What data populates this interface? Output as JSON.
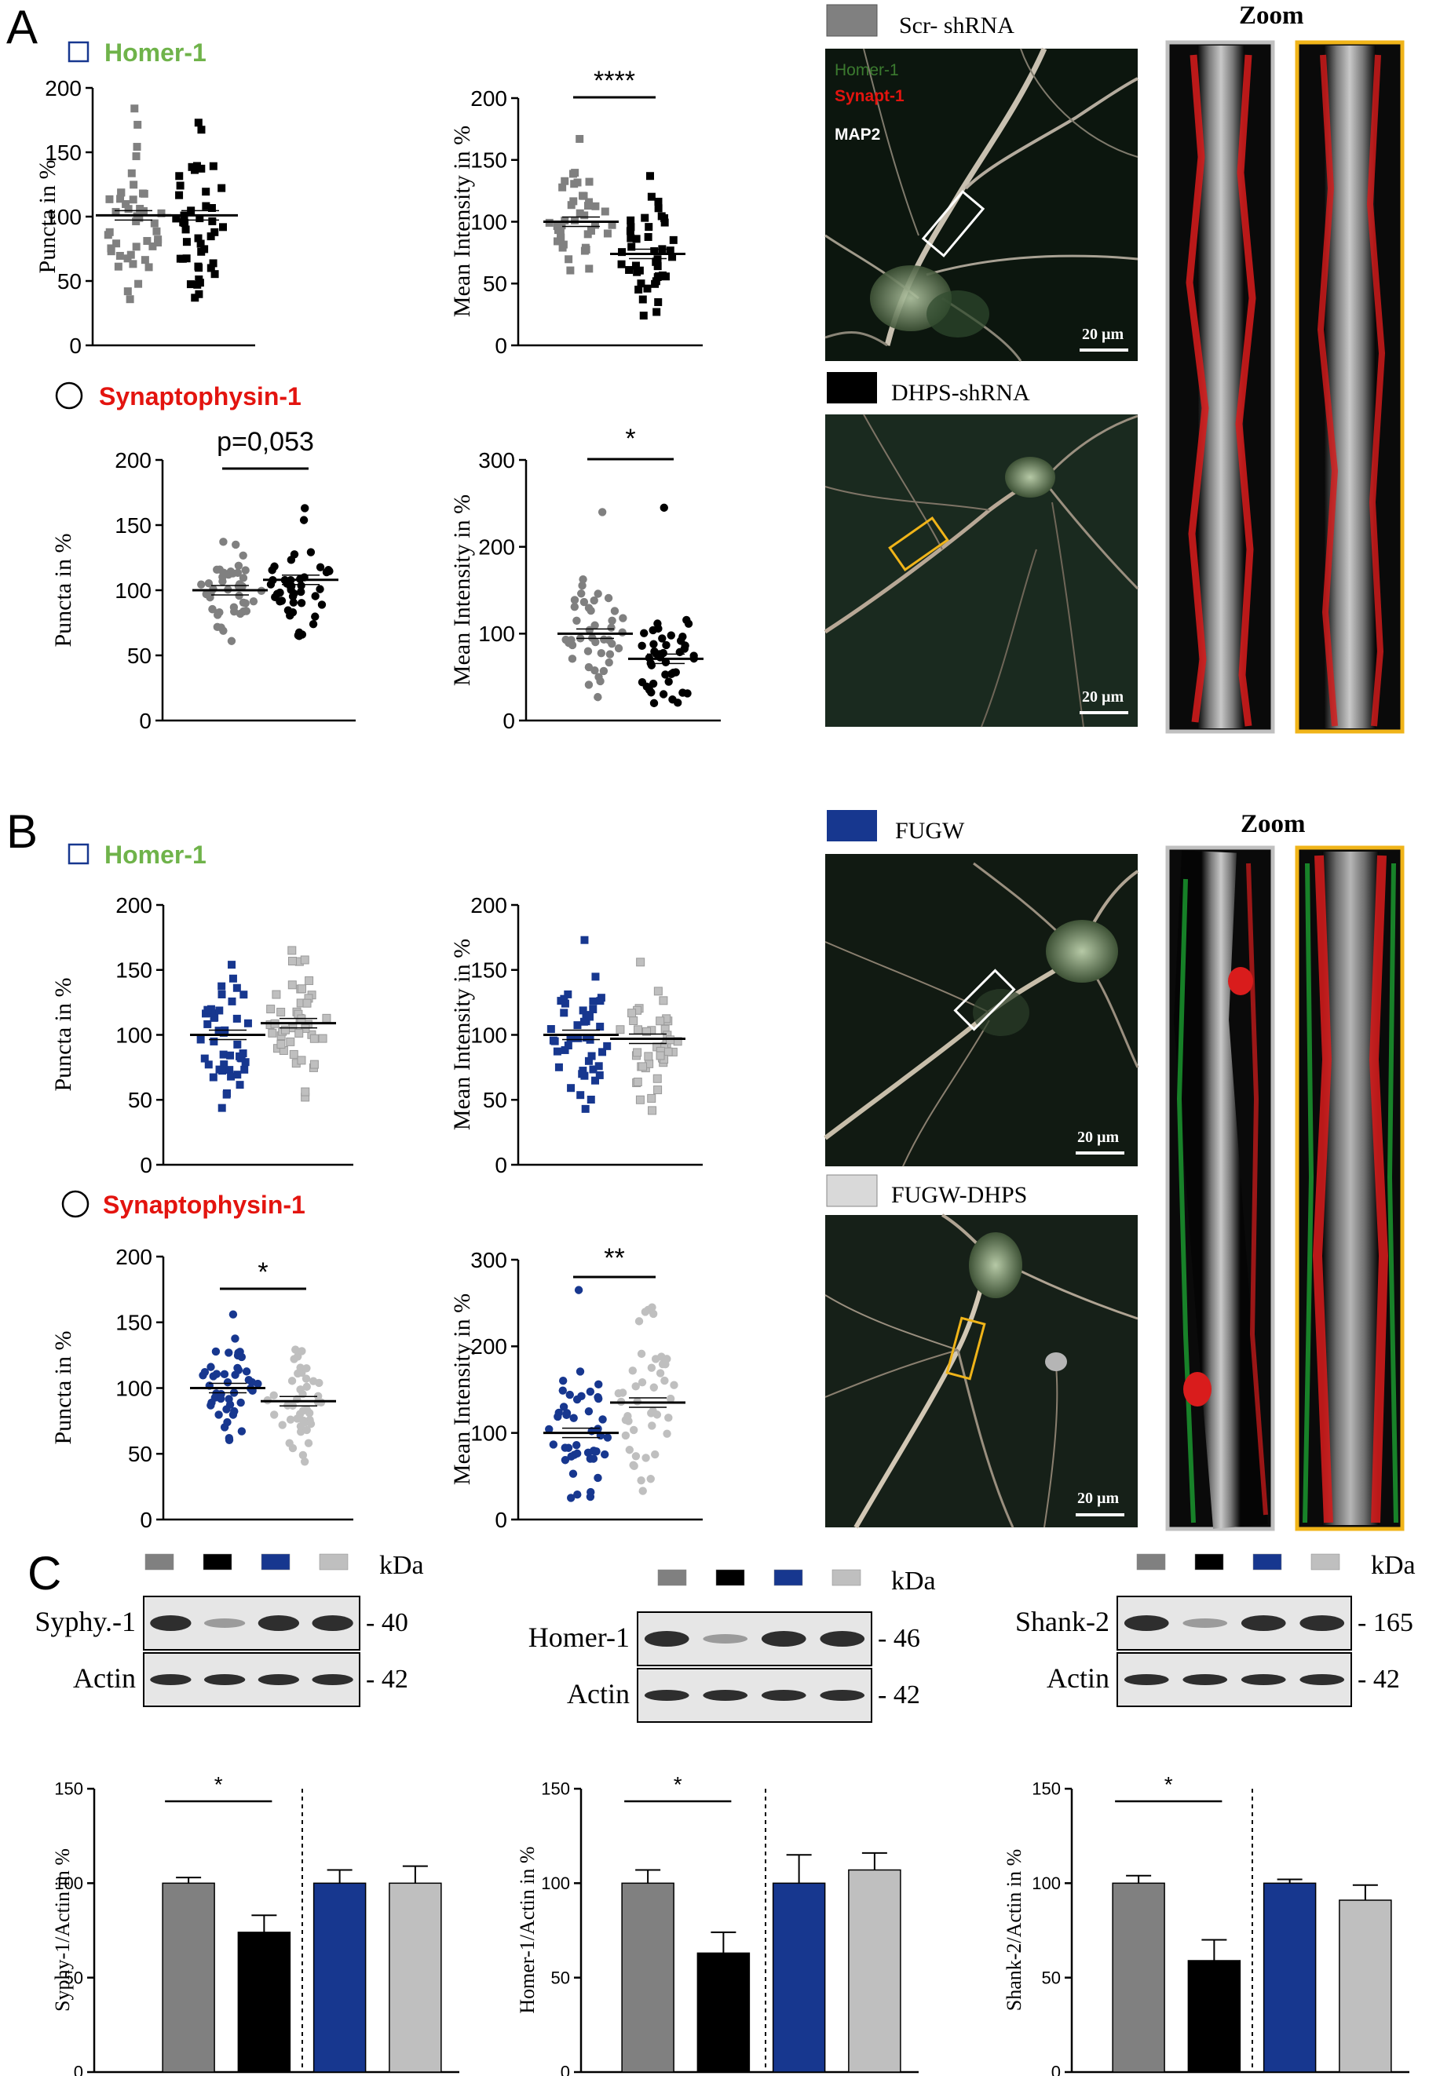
{
  "panels": {
    "A": "A",
    "B": "B",
    "C": "C"
  },
  "legend_ab": {
    "homer": "Homer-1",
    "synapto": "Synaptophysin-1",
    "homer_color": "#6fb34a",
    "synapto_color": "#e3140f"
  },
  "micrographs": {
    "scr_label": "Scr- shRNA",
    "dhps_label": "DHPS-shRNA",
    "fugw_label": "FUGW",
    "fugw_dhps_label": "FUGW-DHPS",
    "zoom_label": "Zoom",
    "scale": "20 µm",
    "channel_homer": "Homer-1",
    "channel_synapt": "Synapt-1",
    "channel_map2": "MAP2"
  },
  "group_colors": {
    "scr": "#808080",
    "dhps": "#000000",
    "fugw": "#17378f",
    "fugw_dhps": "#bfbfbf"
  },
  "chart_data": [
    {
      "id": "A-homer-puncta",
      "type": "scatter",
      "ylabel": "Puncta in %",
      "ylim": [
        0,
        200
      ],
      "yticks": [
        0,
        50,
        100,
        150,
        200
      ],
      "significance": "",
      "series": [
        {
          "color": "#808080",
          "shape": "square",
          "mean": 101,
          "min": 42,
          "max": 184
        },
        {
          "color": "#000000",
          "shape": "square",
          "mean": 101,
          "min": 37,
          "max": 173
        }
      ]
    },
    {
      "id": "A-homer-intensity",
      "type": "scatter",
      "ylabel": "Mean Intensity in %",
      "ylim": [
        0,
        200
      ],
      "yticks": [
        0,
        50,
        100,
        150,
        200
      ],
      "significance": "****",
      "series": [
        {
          "color": "#808080",
          "shape": "square",
          "mean": 100,
          "min": 62,
          "max": 167
        },
        {
          "color": "#000000",
          "shape": "square",
          "mean": 74,
          "min": 27,
          "max": 137
        }
      ]
    },
    {
      "id": "A-synapto-puncta",
      "type": "scatter",
      "ylabel": "Puncta in %",
      "ylim": [
        0,
        200
      ],
      "yticks": [
        0,
        50,
        100,
        150,
        200
      ],
      "significance": "p=0,053",
      "series": [
        {
          "color": "#808080",
          "shape": "circle",
          "mean": 100,
          "min": 61,
          "max": 135
        },
        {
          "color": "#000000",
          "shape": "circle",
          "mean": 108,
          "min": 66,
          "max": 163
        }
      ]
    },
    {
      "id": "A-synapto-intensity",
      "type": "scatter",
      "ylabel": "Mean Intensity in %",
      "ylim": [
        0,
        300
      ],
      "yticks": [
        0,
        100,
        200,
        300
      ],
      "significance": "*",
      "series": [
        {
          "color": "#808080",
          "shape": "circle",
          "mean": 100,
          "min": 27,
          "max": 240
        },
        {
          "color": "#000000",
          "shape": "circle",
          "mean": 71,
          "min": 20,
          "max": 245
        }
      ]
    },
    {
      "id": "B-homer-puncta",
      "type": "scatter",
      "ylabel": "Puncta in %",
      "ylim": [
        0,
        200
      ],
      "yticks": [
        0,
        50,
        100,
        150,
        200
      ],
      "significance": "",
      "series": [
        {
          "color": "#17378f",
          "shape": "square",
          "mean": 100,
          "min": 55,
          "max": 154
        },
        {
          "color": "#bfbfbf",
          "shape": "square",
          "mean": 109,
          "min": 52,
          "max": 165
        }
      ]
    },
    {
      "id": "B-homer-intensity",
      "type": "scatter",
      "ylabel": "Mean Intensity in %",
      "ylim": [
        0,
        200
      ],
      "yticks": [
        0,
        50,
        100,
        150,
        200
      ],
      "significance": "",
      "series": [
        {
          "color": "#17378f",
          "shape": "square",
          "mean": 100,
          "min": 43,
          "max": 173
        },
        {
          "color": "#bfbfbf",
          "shape": "square",
          "mean": 97,
          "min": 50,
          "max": 156
        }
      ]
    },
    {
      "id": "B-synapto-puncta",
      "type": "scatter",
      "ylabel": "Puncta in %",
      "ylim": [
        0,
        200
      ],
      "yticks": [
        0,
        50,
        100,
        150,
        200
      ],
      "significance": "*",
      "series": [
        {
          "color": "#17378f",
          "shape": "circle",
          "mean": 100,
          "min": 62,
          "max": 156
        },
        {
          "color": "#bfbfbf",
          "shape": "circle",
          "mean": 90,
          "min": 49,
          "max": 124
        }
      ]
    },
    {
      "id": "B-synapto-intensity",
      "type": "scatter",
      "ylabel": "Mean Intensity in %",
      "ylim": [
        0,
        300
      ],
      "yticks": [
        0,
        100,
        200,
        300
      ],
      "significance": "**",
      "series": [
        {
          "color": "#17378f",
          "shape": "circle",
          "mean": 100,
          "min": 25,
          "max": 265
        },
        {
          "color": "#bfbfbf",
          "shape": "circle",
          "mean": 135,
          "min": 33,
          "max": 245
        }
      ]
    },
    {
      "id": "C-syphy",
      "type": "bar",
      "ylabel": "Syphy-1/Actin in %",
      "ylim": [
        0,
        150
      ],
      "yticks": [
        0,
        50,
        100,
        150
      ],
      "significance": "*",
      "values": [
        100,
        74,
        100,
        100
      ],
      "errors": [
        3,
        9,
        7,
        9
      ],
      "colors": [
        "#808080",
        "#000000",
        "#17378f",
        "#bfbfbf"
      ]
    },
    {
      "id": "C-homer",
      "type": "bar",
      "ylabel": "Homer-1/Actin in %",
      "ylim": [
        0,
        150
      ],
      "yticks": [
        0,
        50,
        100,
        150
      ],
      "significance": "*",
      "values": [
        100,
        63,
        100,
        107
      ],
      "errors": [
        7,
        11,
        15,
        9
      ],
      "colors": [
        "#808080",
        "#000000",
        "#17378f",
        "#bfbfbf"
      ]
    },
    {
      "id": "C-shank",
      "type": "bar",
      "ylabel": "Shank-2/Actin in %",
      "ylim": [
        0,
        150
      ],
      "yticks": [
        0,
        50,
        100,
        150
      ],
      "significance": "*",
      "values": [
        100,
        59,
        100,
        91
      ],
      "errors": [
        4,
        11,
        2,
        8
      ],
      "colors": [
        "#808080",
        "#000000",
        "#17378f",
        "#bfbfbf"
      ]
    }
  ],
  "blots": [
    {
      "protein": "Syphy.-1",
      "kda": "- 40",
      "actin": "Actin",
      "actin_kda": "- 42",
      "unit": "kDa"
    },
    {
      "protein": "Homer-1",
      "kda": "- 46",
      "actin": "Actin",
      "actin_kda": "- 42",
      "unit": "kDa"
    },
    {
      "protein": "Shank-2",
      "kda": "- 165",
      "actin": "Actin",
      "actin_kda": "- 42",
      "unit": "kDa"
    }
  ]
}
